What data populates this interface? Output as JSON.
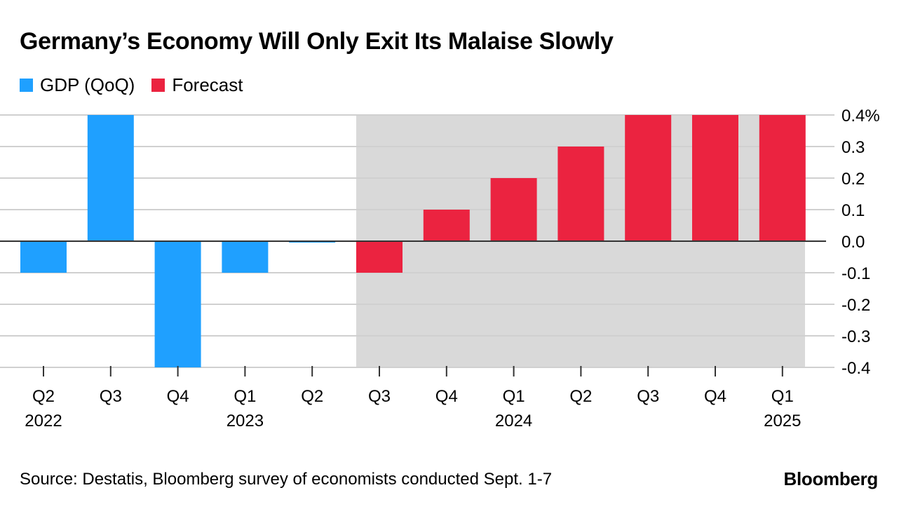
{
  "header": {
    "title": "Germany’s Economy Will Only Exit Its Malaise Slowly"
  },
  "legend": {
    "items": [
      {
        "label": "GDP (QoQ)",
        "color": "#1fa0ff"
      },
      {
        "label": "Forecast",
        "color": "#eb2340"
      }
    ]
  },
  "footer": {
    "source": "Source: Destatis, Bloomberg survey of economists conducted Sept. 1-7",
    "brand": "Bloomberg"
  },
  "chart_data": {
    "type": "bar",
    "categories": [
      "Q2 2022",
      "Q3 2022",
      "Q4 2022",
      "Q1 2023",
      "Q2 2023",
      "Q3 2023",
      "Q4 2023",
      "Q1 2024",
      "Q2 2024",
      "Q3 2024",
      "Q4 2024",
      "Q1 2025"
    ],
    "tick_labels": [
      {
        "quarter": "Q2",
        "year": "2022"
      },
      {
        "quarter": "Q3",
        "year": ""
      },
      {
        "quarter": "Q4",
        "year": ""
      },
      {
        "quarter": "Q1",
        "year": "2023"
      },
      {
        "quarter": "Q2",
        "year": ""
      },
      {
        "quarter": "Q3",
        "year": ""
      },
      {
        "quarter": "Q4",
        "year": ""
      },
      {
        "quarter": "Q1",
        "year": "2024"
      },
      {
        "quarter": "Q2",
        "year": ""
      },
      {
        "quarter": "Q3",
        "year": ""
      },
      {
        "quarter": "Q4",
        "year": ""
      },
      {
        "quarter": "Q1",
        "year": "2025"
      }
    ],
    "series": [
      {
        "name": "GDP (QoQ)",
        "color": "#1fa0ff",
        "values": [
          -0.1,
          0.4,
          -0.4,
          -0.1,
          0.0,
          null,
          null,
          null,
          null,
          null,
          null,
          null
        ]
      },
      {
        "name": "Forecast",
        "color": "#eb2340",
        "values": [
          null,
          null,
          null,
          null,
          null,
          -0.1,
          0.1,
          0.2,
          0.3,
          0.4,
          0.4,
          0.4
        ]
      }
    ],
    "forecast_shading_start": "Q3 2023",
    "shading_color": "#d9d9d9",
    "ylim": [
      -0.4,
      0.4
    ],
    "yticks": [
      {
        "value": 0.4,
        "label": "0.4%"
      },
      {
        "value": 0.3,
        "label": "0.3"
      },
      {
        "value": 0.2,
        "label": "0.2"
      },
      {
        "value": 0.1,
        "label": "0.1"
      },
      {
        "value": 0.0,
        "label": "0.0"
      },
      {
        "value": -0.1,
        "label": "-0.1"
      },
      {
        "value": -0.2,
        "label": "-0.2"
      },
      {
        "value": -0.3,
        "label": "-0.3"
      },
      {
        "value": -0.4,
        "label": "-0.4"
      }
    ],
    "grid": true,
    "y_axis_side": "right",
    "legend_position": "top-left"
  }
}
